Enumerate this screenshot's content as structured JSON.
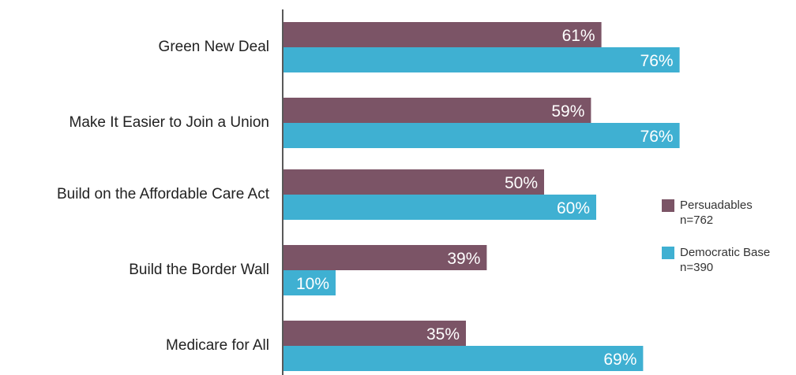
{
  "chart_data": {
    "type": "bar",
    "orientation": "horizontal",
    "categories": [
      "Green New Deal",
      "Make It Easier to Join a Union",
      "Build on the Affordable Care Act",
      "Build the Border Wall",
      "Medicare for All"
    ],
    "series": [
      {
        "name": "Persuadables",
        "note": "n=762",
        "color": "#7b5466",
        "values": [
          61,
          59,
          50,
          39,
          35
        ]
      },
      {
        "name": "Democratic Base",
        "note": "n=390",
        "color": "#3fb0d2",
        "values": [
          76,
          76,
          60,
          10,
          69
        ]
      }
    ],
    "value_suffix": "%",
    "xlim": [
      0,
      100
    ],
    "grid": false,
    "legend_position": "right"
  }
}
